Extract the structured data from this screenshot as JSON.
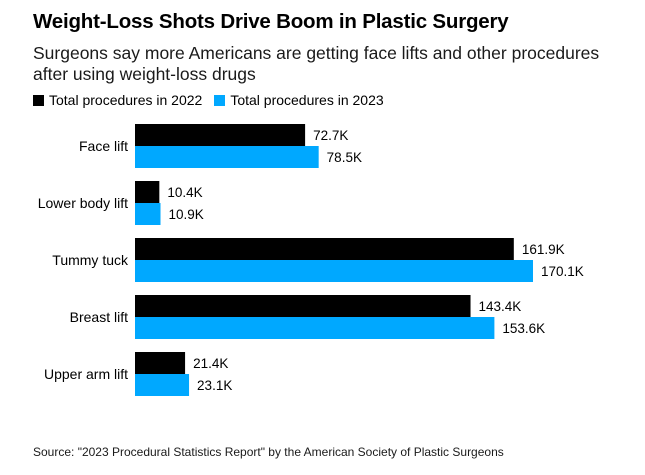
{
  "chart_data": {
    "type": "bar",
    "orientation": "horizontal",
    "title": "Weight-Loss Shots Drive Boom in Plastic Surgery",
    "subtitle": "Surgeons say more Americans are getting face lifts and other procedures after using weight-loss drugs",
    "categories": [
      "Face lift",
      "Lower body lift",
      "Tummy tuck",
      "Breast lift",
      "Upper arm lift"
    ],
    "series": [
      {
        "name": "Total procedures in 2022",
        "color": "#000000",
        "values": [
          72.7,
          10.4,
          161.9,
          143.4,
          21.4
        ],
        "labels": [
          "72.7K",
          "10.4K",
          "161.9K",
          "143.4K",
          "21.4K"
        ]
      },
      {
        "name": "Total procedures in 2023",
        "color": "#00a8ff",
        "values": [
          78.5,
          10.9,
          170.1,
          153.6,
          23.1
        ],
        "labels": [
          "78.5K",
          "10.9K",
          "170.1K",
          "153.6K",
          "23.1K"
        ]
      }
    ],
    "unit": "K",
    "xlim": [
      0,
      170.1
    ],
    "grid": false,
    "legend_position": "top-left",
    "source": "Source: \"2023 Procedural Statistics Report\" by the American Society of Plastic Surgeons"
  }
}
